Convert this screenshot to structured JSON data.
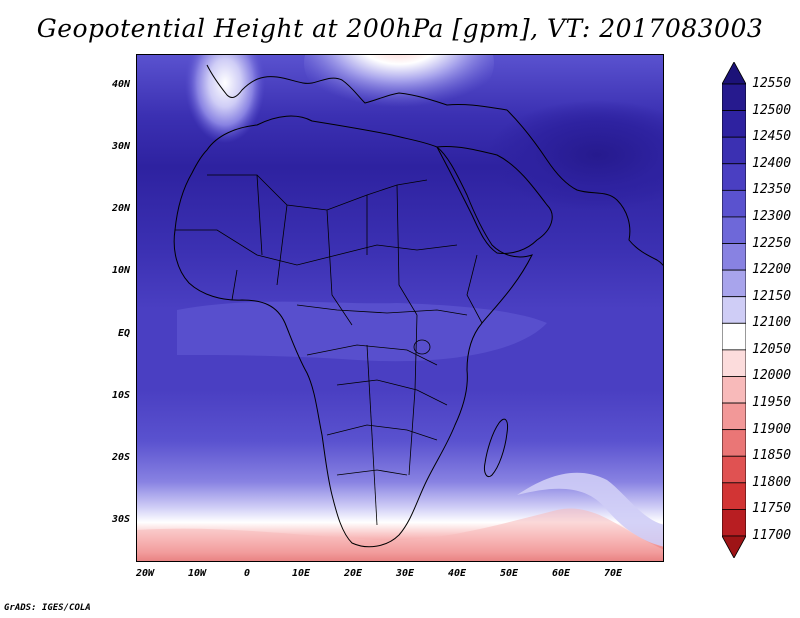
{
  "title": "Geopotential Height at 200hPa [gpm], VT: 2017083003",
  "credit": "GrADS: IGES/COLA",
  "lat_labels": [
    "40N",
    "30N",
    "20N",
    "10N",
    "EQ",
    "10S",
    "20S",
    "30S"
  ],
  "lon_labels": [
    "20W",
    "10W",
    "0",
    "10E",
    "20E",
    "30E",
    "40E",
    "50E",
    "60E",
    "70E"
  ],
  "colorbar": {
    "levels": [
      "12550",
      "12500",
      "12450",
      "12400",
      "12350",
      "12300",
      "12250",
      "12200",
      "12150",
      "12100",
      "12050",
      "12000",
      "11950",
      "11900",
      "11850",
      "11800",
      "11750",
      "11700"
    ],
    "colors": [
      "#1c1278",
      "#261a8e",
      "#2e22a0",
      "#3b30b2",
      "#4a3fc2",
      "#5a52cf",
      "#6e68d9",
      "#8882e2",
      "#a8a4ec",
      "#cfcdf6",
      "#ffffff",
      "#fcdcdc",
      "#f8baba",
      "#f29898",
      "#ea7676",
      "#e05252",
      "#d23434",
      "#b81e22",
      "#9e1416"
    ]
  },
  "map": {
    "region": "Africa",
    "lon_range": [
      -22,
      80
    ],
    "lat_range": [
      -37,
      45
    ],
    "variable": "geopotential height 200hPa"
  }
}
